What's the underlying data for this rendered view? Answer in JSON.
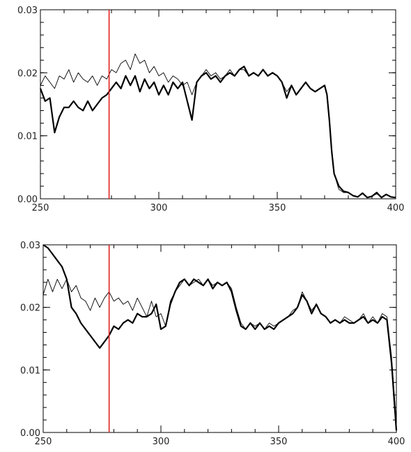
{
  "chart_data": [
    {
      "type": "line",
      "title": "",
      "xlabel": "",
      "ylabel": "",
      "xlim": [
        250,
        400
      ],
      "ylim": [
        0,
        0.03
      ],
      "x_ticks": [
        250,
        300,
        350,
        400
      ],
      "x_tick_labels": [
        "250",
        "300",
        "350",
        "400"
      ],
      "y_ticks": [
        0,
        0.01,
        0.02,
        0.03
      ],
      "y_tick_labels": [
        "0.00",
        "0.01",
        "0.02",
        "0.03"
      ],
      "vline": {
        "x": 279,
        "color": "#e02020"
      },
      "grid": false,
      "series": [
        {
          "style": "thin",
          "color": "#000000",
          "x": [
            250,
            252,
            254,
            256,
            258,
            260,
            262,
            264,
            266,
            268,
            270,
            272,
            274,
            276,
            278,
            280,
            282,
            284,
            286,
            288,
            290,
            292,
            294,
            296,
            298,
            300,
            302,
            304,
            306,
            308,
            310,
            312,
            314,
            316,
            318,
            320,
            322,
            324,
            326,
            328,
            330,
            332,
            334,
            336,
            338,
            340,
            342,
            344,
            346,
            348,
            350,
            352,
            354,
            356,
            358,
            360,
            362,
            364,
            366,
            368,
            370,
            371,
            372,
            373,
            374,
            376,
            378,
            380,
            382,
            384,
            386,
            388,
            390,
            392,
            394,
            396,
            398,
            400
          ],
          "y": [
            0.018,
            0.0195,
            0.0185,
            0.0175,
            0.0195,
            0.019,
            0.0205,
            0.0185,
            0.02,
            0.019,
            0.0185,
            0.0195,
            0.018,
            0.0195,
            0.019,
            0.0205,
            0.02,
            0.0215,
            0.022,
            0.0205,
            0.023,
            0.0215,
            0.022,
            0.02,
            0.021,
            0.0195,
            0.02,
            0.0185,
            0.0195,
            0.019,
            0.018,
            0.0185,
            0.0165,
            0.0185,
            0.0195,
            0.0205,
            0.0195,
            0.02,
            0.019,
            0.0195,
            0.0205,
            0.0195,
            0.0205,
            0.0205,
            0.0195,
            0.02,
            0.0195,
            0.0205,
            0.0195,
            0.02,
            0.0195,
            0.0185,
            0.017,
            0.018,
            0.0165,
            0.0175,
            0.0185,
            0.0175,
            0.017,
            0.0175,
            0.018,
            0.0165,
            0.0125,
            0.008,
            0.004,
            0.0015,
            0.001,
            0.001,
            0.0005,
            0.0003,
            0.0008,
            0.0002,
            0.0004,
            0.0008,
            0.0002,
            0.0006,
            0.0003,
            0.0002
          ]
        },
        {
          "style": "thick",
          "color": "#000000",
          "x": [
            250,
            252,
            254,
            256,
            258,
            260,
            262,
            264,
            266,
            268,
            270,
            272,
            274,
            276,
            278,
            280,
            282,
            284,
            286,
            288,
            290,
            292,
            294,
            296,
            298,
            300,
            302,
            304,
            306,
            308,
            310,
            312,
            314,
            316,
            318,
            320,
            322,
            324,
            326,
            328,
            330,
            332,
            334,
            336,
            338,
            340,
            342,
            344,
            346,
            348,
            350,
            352,
            354,
            356,
            358,
            360,
            362,
            364,
            366,
            368,
            370,
            371,
            372,
            373,
            374,
            376,
            378,
            380,
            382,
            384,
            386,
            388,
            390,
            392,
            394,
            396,
            398,
            400
          ],
          "y": [
            0.0175,
            0.0155,
            0.016,
            0.0105,
            0.013,
            0.0145,
            0.0145,
            0.0155,
            0.0145,
            0.014,
            0.0155,
            0.014,
            0.015,
            0.016,
            0.0165,
            0.0175,
            0.0185,
            0.0175,
            0.0195,
            0.018,
            0.0195,
            0.017,
            0.019,
            0.0175,
            0.0185,
            0.0165,
            0.018,
            0.0165,
            0.0185,
            0.0175,
            0.0185,
            0.0155,
            0.0125,
            0.0185,
            0.0195,
            0.02,
            0.019,
            0.0195,
            0.0185,
            0.0195,
            0.02,
            0.0195,
            0.0205,
            0.021,
            0.0195,
            0.02,
            0.0195,
            0.0205,
            0.0195,
            0.02,
            0.0195,
            0.0185,
            0.016,
            0.018,
            0.0165,
            0.0175,
            0.0185,
            0.0175,
            0.017,
            0.0175,
            0.018,
            0.0165,
            0.0125,
            0.0075,
            0.004,
            0.002,
            0.0012,
            0.001,
            0.0005,
            0.0003,
            0.0009,
            0.0002,
            0.0004,
            0.001,
            0.0002,
            0.0007,
            0.0003,
            0.0002
          ]
        }
      ]
    },
    {
      "type": "line",
      "title": "",
      "xlabel": "",
      "ylabel": "",
      "xlim": [
        250,
        400
      ],
      "ylim": [
        0,
        0.03
      ],
      "x_ticks": [
        250,
        300,
        350,
        400
      ],
      "x_tick_labels": [
        "250",
        "300",
        "350",
        "400"
      ],
      "y_ticks": [
        0,
        0.01,
        0.02,
        0.03
      ],
      "y_tick_labels": [
        "0.00",
        "0.01",
        "0.02",
        "0.03"
      ],
      "vline": {
        "x": 278,
        "color": "#e02020"
      },
      "grid": false,
      "series": [
        {
          "style": "thin",
          "color": "#000000",
          "x": [
            250,
            252,
            254,
            256,
            258,
            260,
            262,
            264,
            266,
            268,
            270,
            272,
            274,
            276,
            278,
            280,
            282,
            284,
            286,
            288,
            290,
            292,
            294,
            296,
            298,
            300,
            302,
            304,
            306,
            308,
            310,
            312,
            314,
            316,
            318,
            320,
            322,
            324,
            326,
            328,
            330,
            332,
            334,
            336,
            338,
            340,
            342,
            344,
            346,
            348,
            350,
            352,
            354,
            356,
            358,
            360,
            362,
            364,
            366,
            368,
            370,
            372,
            374,
            376,
            378,
            380,
            382,
            384,
            386,
            388,
            390,
            392,
            394,
            396,
            398,
            400
          ],
          "y": [
            0.022,
            0.0245,
            0.0225,
            0.0245,
            0.023,
            0.0245,
            0.0225,
            0.0235,
            0.0215,
            0.021,
            0.0195,
            0.0215,
            0.02,
            0.0215,
            0.0225,
            0.021,
            0.0215,
            0.0205,
            0.021,
            0.0195,
            0.0215,
            0.02,
            0.0185,
            0.021,
            0.0185,
            0.019,
            0.017,
            0.021,
            0.0225,
            0.0235,
            0.0245,
            0.0235,
            0.024,
            0.0245,
            0.0235,
            0.0245,
            0.0235,
            0.024,
            0.0235,
            0.024,
            0.023,
            0.02,
            0.0175,
            0.0165,
            0.0175,
            0.017,
            0.0175,
            0.0165,
            0.0175,
            0.017,
            0.0175,
            0.018,
            0.0185,
            0.0195,
            0.02,
            0.0225,
            0.021,
            0.0195,
            0.0205,
            0.019,
            0.0185,
            0.0175,
            0.018,
            0.0175,
            0.0185,
            0.018,
            0.0175,
            0.018,
            0.019,
            0.0175,
            0.0185,
            0.0175,
            0.019,
            0.0185,
            0.012,
            0.0015
          ]
        },
        {
          "style": "thick",
          "color": "#000000",
          "x": [
            250,
            252,
            254,
            256,
            258,
            260,
            262,
            264,
            266,
            268,
            270,
            272,
            274,
            276,
            278,
            280,
            282,
            284,
            286,
            288,
            290,
            292,
            294,
            296,
            298,
            300,
            302,
            304,
            306,
            308,
            310,
            312,
            314,
            316,
            318,
            320,
            322,
            324,
            326,
            328,
            330,
            332,
            334,
            336,
            338,
            340,
            342,
            344,
            346,
            348,
            350,
            352,
            354,
            356,
            358,
            360,
            362,
            364,
            366,
            368,
            370,
            372,
            374,
            376,
            378,
            380,
            382,
            384,
            386,
            388,
            390,
            392,
            394,
            396,
            398,
            400
          ],
          "y": [
            0.03,
            0.0295,
            0.0285,
            0.0275,
            0.0265,
            0.0245,
            0.02,
            0.019,
            0.0175,
            0.0165,
            0.0155,
            0.0145,
            0.0135,
            0.0145,
            0.0155,
            0.017,
            0.0165,
            0.0175,
            0.018,
            0.0175,
            0.019,
            0.0185,
            0.0185,
            0.019,
            0.0205,
            0.0165,
            0.017,
            0.0205,
            0.0225,
            0.024,
            0.0245,
            0.0235,
            0.0245,
            0.024,
            0.0235,
            0.0245,
            0.023,
            0.024,
            0.0235,
            0.024,
            0.0225,
            0.0195,
            0.017,
            0.0165,
            0.0175,
            0.0165,
            0.0175,
            0.0165,
            0.017,
            0.0165,
            0.0175,
            0.018,
            0.0185,
            0.019,
            0.02,
            0.022,
            0.021,
            0.019,
            0.0205,
            0.019,
            0.0185,
            0.0175,
            0.018,
            0.0175,
            0.018,
            0.0175,
            0.0175,
            0.018,
            0.0185,
            0.0175,
            0.018,
            0.0175,
            0.0185,
            0.018,
            0.011,
            0.0003
          ]
        }
      ]
    }
  ]
}
